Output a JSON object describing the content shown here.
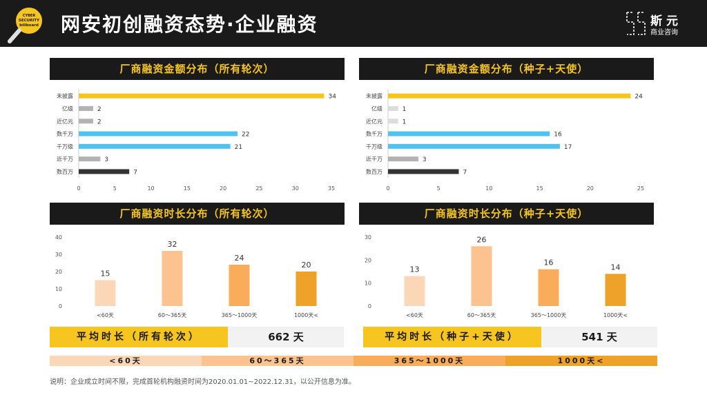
{
  "header": {
    "title": "网安初创融资态势·企业融资",
    "brand_name": "斯元",
    "brand_sub": "商业咨询",
    "logo_text": "CYBER SECURITY billboard"
  },
  "panels": {
    "amount_all_title": "厂商融资金额分布（所有轮次）",
    "amount_seed_title": "厂商融资金额分布（种子+天使）",
    "duration_all_title": "厂商融资时长分布（所有轮次）",
    "duration_seed_title": "厂商融资时长分布（种子+天使）"
  },
  "averages": {
    "all_label": "平均时长（所有轮次）",
    "all_value": "662 天",
    "seed_label": "平均时长（种子+天使）",
    "seed_value": "541 天"
  },
  "legend": [
    "<60天",
    "60～365天",
    "365～1000天",
    "1000天<"
  ],
  "note": "说明：企业成立时间不限，完成首轮机构融资时间为2020.01.01~2022.12.31，以公开信息为准。",
  "colors": {
    "yellow": "#f7c520",
    "grey": "#b3b3b3",
    "lightgrey": "#dcdcdc",
    "blue": "#4ec3f2",
    "dark": "#333333",
    "dur1": "#fbd7b8",
    "dur2": "#fcc28f",
    "dur3": "#f9ad5a",
    "dur4": "#eea22a"
  },
  "chart_data": [
    {
      "type": "bar",
      "orientation": "horizontal",
      "title": "厂商融资金额分布（所有轮次）",
      "categories": [
        "未披露",
        "亿级",
        "近亿元",
        "数千万",
        "千万级",
        "近千万",
        "数百万"
      ],
      "values": [
        34,
        2,
        2,
        22,
        21,
        3,
        7
      ],
      "bar_colors": [
        "#f7c520",
        "#b3b3b3",
        "#b3b3b3",
        "#4ec3f2",
        "#4ec3f2",
        "#b3b3b3",
        "#333333"
      ],
      "xlim": [
        0,
        35
      ],
      "xticks": [
        0,
        5,
        10,
        15,
        20,
        25,
        30,
        35
      ]
    },
    {
      "type": "bar",
      "orientation": "horizontal",
      "title": "厂商融资金额分布（种子+天使）",
      "categories": [
        "未披露",
        "亿级",
        "近亿元",
        "数千万",
        "千万级",
        "近千万",
        "数百万"
      ],
      "values": [
        24,
        1,
        1,
        16,
        17,
        3,
        7
      ],
      "bar_colors": [
        "#f7c520",
        "#dcdcdc",
        "#dcdcdc",
        "#4ec3f2",
        "#4ec3f2",
        "#b3b3b3",
        "#333333"
      ],
      "xlim": [
        0,
        25
      ],
      "xticks": [
        0,
        5,
        10,
        15,
        20,
        25
      ]
    },
    {
      "type": "bar",
      "orientation": "vertical",
      "title": "厂商融资时长分布（所有轮次）",
      "categories": [
        "<60天",
        "60～365天",
        "365～1000天",
        "1000天<"
      ],
      "values": [
        15,
        32,
        24,
        20
      ],
      "bar_colors": [
        "#fbd7b8",
        "#fcc28f",
        "#f9ad5a",
        "#eea22a"
      ],
      "ylim": [
        0,
        40
      ],
      "yticks": [
        0,
        10,
        20,
        30,
        40
      ]
    },
    {
      "type": "bar",
      "orientation": "vertical",
      "title": "厂商融资时长分布（种子+天使）",
      "categories": [
        "<60天",
        "60～365天",
        "365～1000天",
        "1000天<"
      ],
      "values": [
        13,
        26,
        16,
        14
      ],
      "bar_colors": [
        "#fbd7b8",
        "#fcc28f",
        "#f9ad5a",
        "#eea22a"
      ],
      "ylim": [
        0,
        30
      ],
      "yticks": [
        0,
        10,
        20,
        30
      ]
    }
  ]
}
